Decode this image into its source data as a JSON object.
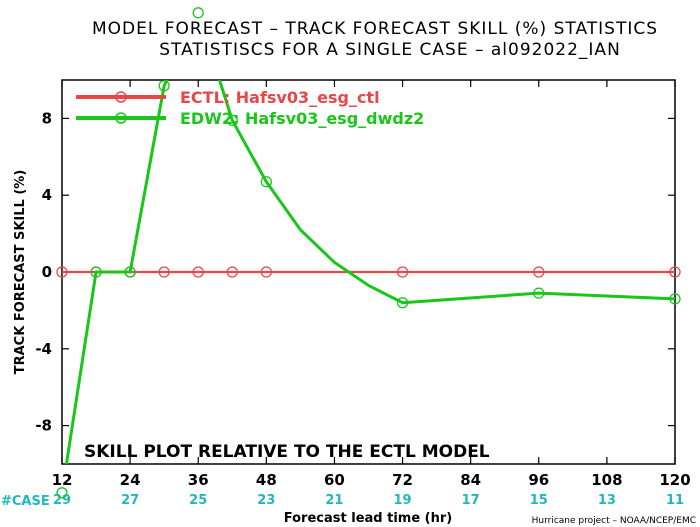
{
  "chart_data": {
    "type": "line",
    "title": "MODEL FORECAST – TRACK FORECAST SKILL (%) STATISTICS",
    "subtitle": "STATISTISCS FOR A SINGLE CASE – al092022_IAN",
    "xlabel": "Forecast lead time (hr)",
    "ylabel": "TRACK FORECAST SKILL (%)",
    "xlim": [
      12,
      120
    ],
    "ylim": [
      -10,
      10
    ],
    "x_ticks": [
      12,
      24,
      36,
      48,
      60,
      72,
      84,
      96,
      108,
      120
    ],
    "y_ticks": [
      -8,
      -4,
      0,
      4,
      8
    ],
    "case_label": "#CASE",
    "case_counts": [
      29,
      27,
      25,
      23,
      21,
      19,
      17,
      15,
      13,
      11
    ],
    "annotation": "SKILL PLOT RELATIVE TO THE ECTL MODEL",
    "credit": "Hurricane project – NOAA/NCEP/EMC",
    "legend_position": "top-left",
    "series": [
      {
        "name": "ECTL: Hafsv03_esg_ctl",
        "color": "#e8474a",
        "x": [
          12,
          18,
          24,
          30,
          36,
          42,
          48,
          72,
          96,
          120
        ],
        "y": [
          0,
          0,
          0,
          0,
          0,
          0,
          0,
          0,
          0,
          0
        ],
        "marker_x": [
          12,
          18,
          24,
          30,
          36,
          42,
          48,
          72,
          96,
          120
        ]
      },
      {
        "name": "EDW2: Hafsv03_esg_dwdz2",
        "color": "#19c619",
        "x": [
          12,
          18,
          24,
          30,
          36,
          42,
          48,
          54,
          60,
          66,
          72,
          96,
          120
        ],
        "y": [
          -11.5,
          0,
          0,
          9.7,
          13.5,
          7.9,
          4.7,
          2.2,
          0.5,
          -0.7,
          -1.6,
          -1.1,
          -1.4
        ],
        "marker_x": [
          12,
          18,
          24,
          30,
          36,
          42,
          48,
          72,
          96,
          120
        ]
      }
    ]
  }
}
